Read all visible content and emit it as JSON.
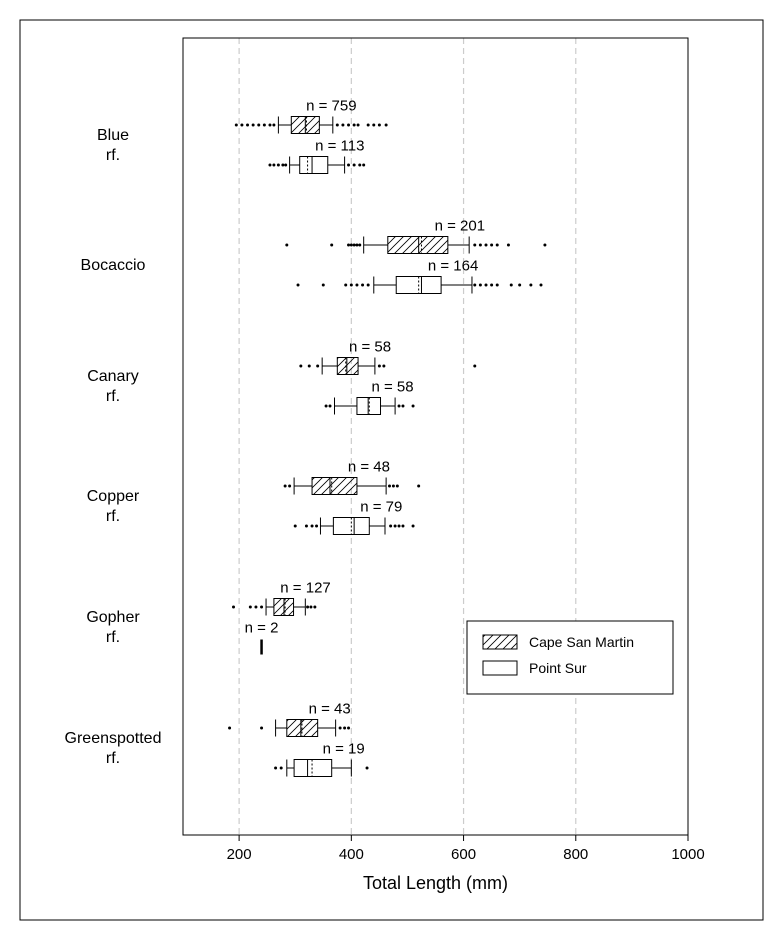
{
  "chart_data": {
    "type": "boxplot",
    "orientation": "horizontal",
    "xlabel": "Total Length (mm)",
    "xlim": [
      100,
      1000
    ],
    "xticks": [
      200,
      400,
      600,
      800,
      1000
    ],
    "grid": "vertical dashed lines at 200, 400, 600, 800",
    "legend": {
      "placement": "lower-right",
      "entries": [
        {
          "name": "Cape San Martin",
          "pattern": "hatched"
        },
        {
          "name": "Point Sur",
          "pattern": "open"
        }
      ]
    },
    "groups": [
      {
        "label": [
          "Blue",
          "rf."
        ],
        "boxes": [
          {
            "series": "Cape San Martin",
            "n_label": "n = 759",
            "whisker_low": 270,
            "q1": 293,
            "median": 318,
            "mean": 320,
            "q3": 343,
            "whisker_high": 367,
            "outliers": [
              195,
              205,
              215,
              225,
              235,
              245,
              255,
              262,
              375,
              385,
              395,
              405,
              412,
              430,
              440,
              450,
              462
            ]
          },
          {
            "series": "Point Sur",
            "n_label": "n = 113",
            "whisker_low": 290,
            "q1": 308,
            "median": 330,
            "mean": 322,
            "q3": 358,
            "whisker_high": 388,
            "outliers": [
              255,
              262,
              270,
              278,
              283,
              395,
              405,
              415,
              422
            ]
          }
        ]
      },
      {
        "label": [
          "Bocaccio"
        ],
        "boxes": [
          {
            "series": "Cape San Martin",
            "n_label": "n = 201",
            "whisker_low": 422,
            "q1": 465,
            "median": 520,
            "mean": 525,
            "q3": 572,
            "whisker_high": 610,
            "outliers": [
              285,
              365,
              395,
              400,
              405,
              410,
              415,
              620,
              630,
              640,
              650,
              660,
              680,
              745
            ]
          },
          {
            "series": "Point Sur",
            "n_label": "n = 164",
            "whisker_low": 440,
            "q1": 480,
            "median": 525,
            "mean": 520,
            "q3": 560,
            "whisker_high": 615,
            "outliers": [
              305,
              350,
              390,
              400,
              410,
              420,
              430,
              620,
              630,
              640,
              650,
              660,
              685,
              700,
              720,
              738
            ]
          }
        ]
      },
      {
        "label": [
          "Canary",
          "rf."
        ],
        "boxes": [
          {
            "series": "Cape San Martin",
            "n_label": "n = 58",
            "whisker_low": 348,
            "q1": 375,
            "median": 392,
            "mean": 390,
            "q3": 412,
            "whisker_high": 442,
            "outliers": [
              310,
              325,
              340,
              450,
              458,
              620
            ]
          },
          {
            "series": "Point Sur",
            "n_label": "n = 58",
            "whisker_low": 370,
            "q1": 410,
            "median": 430,
            "mean": 432,
            "q3": 452,
            "whisker_high": 478,
            "outliers": [
              355,
              362,
              485,
              492,
              510
            ]
          }
        ]
      },
      {
        "label": [
          "Copper",
          "rf."
        ],
        "boxes": [
          {
            "series": "Cape San Martin",
            "n_label": "n = 48",
            "whisker_low": 298,
            "q1": 330,
            "median": 362,
            "mean": 365,
            "q3": 410,
            "whisker_high": 462,
            "outliers": [
              282,
              290,
              468,
              475,
              482,
              520
            ]
          },
          {
            "series": "Point Sur",
            "n_label": "n = 79",
            "whisker_low": 345,
            "q1": 368,
            "median": 405,
            "mean": 400,
            "q3": 432,
            "whisker_high": 460,
            "outliers": [
              300,
              320,
              330,
              338,
              470,
              478,
              485,
              492,
              510
            ]
          }
        ]
      },
      {
        "label": [
          "Gopher",
          "rf."
        ],
        "boxes": [
          {
            "series": "Cape San Martin",
            "n_label": "n = 127",
            "whisker_low": 248,
            "q1": 262,
            "median": 280,
            "mean": 282,
            "q3": 297,
            "whisker_high": 318,
            "outliers": [
              190,
              220,
              230,
              240,
              322,
              328,
              335
            ]
          },
          {
            "series": "Point Sur",
            "n_label": "n = 2",
            "whisker_low": 240,
            "q1": 240,
            "median": 240,
            "mean": 240,
            "q3": 240,
            "whisker_high": 240,
            "outliers": []
          }
        ]
      },
      {
        "label": [
          "Greenspotted",
          "rf."
        ],
        "boxes": [
          {
            "series": "Cape San Martin",
            "n_label": "n = 43",
            "whisker_low": 265,
            "q1": 285,
            "median": 310,
            "mean": 312,
            "q3": 340,
            "whisker_high": 372,
            "outliers": [
              183,
              240,
              380,
              388,
              395
            ]
          },
          {
            "series": "Point Sur",
            "n_label": "n = 19",
            "whisker_low": 285,
            "q1": 298,
            "median": 322,
            "mean": 330,
            "q3": 365,
            "whisker_high": 400,
            "outliers": [
              265,
              275,
              428
            ]
          }
        ]
      }
    ]
  }
}
